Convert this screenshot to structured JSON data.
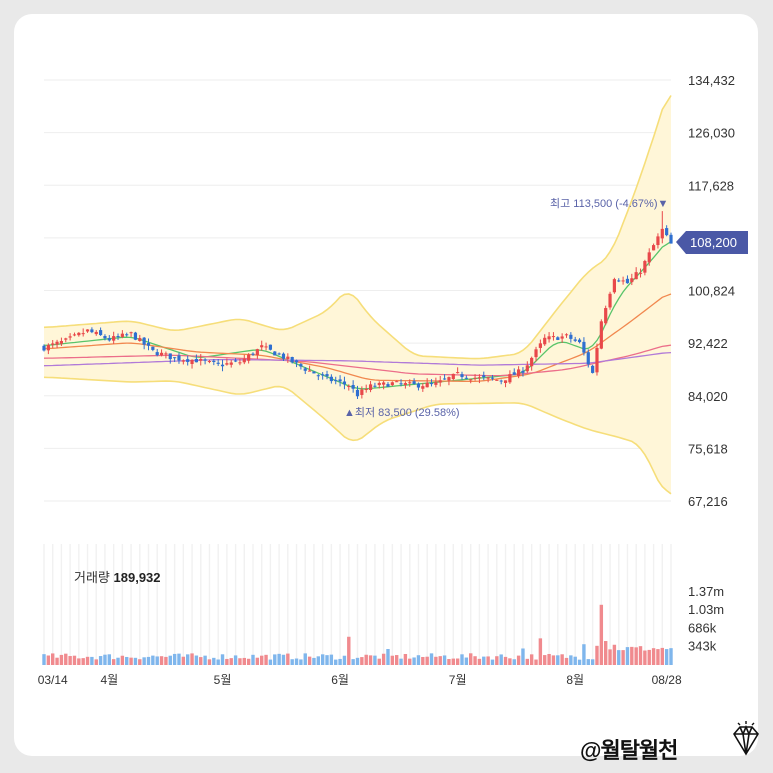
{
  "watermark": "@월탈월천",
  "volume_label": "거래량",
  "volume_value": "189,932",
  "current_price": "108,200",
  "high_label": "최고 113,500 (-4.67%)▼",
  "low_label": "▲최저 83,500 (29.58%)",
  "icons": [
    "diamond-icon"
  ],
  "colors": {
    "up": "#e8484a",
    "down": "#2f6fd0",
    "band_fill": "#fff6d8",
    "band_line": "#f6de7a",
    "ma5": "#58c46a",
    "ma20": "#f1884f",
    "ma60": "#ec6e8a",
    "ma120": "#b17ad8",
    "price_tag": "#4a58a6",
    "vol_up": "#f08a8e",
    "vol_down": "#7fb6ec"
  },
  "chart_data": {
    "type": "candlestick",
    "y_ticks": [
      "134,432",
      "126,030",
      "117,628",
      "108,200",
      "100,824",
      "92,422",
      "84,020",
      "75,618",
      "67,216"
    ],
    "ylim": [
      67216,
      134432
    ],
    "x_ticks": [
      "03/14",
      "4월",
      "5월",
      "6월",
      "7월",
      "8월",
      "08/28"
    ],
    "volume_ticks": [
      "1.37m",
      "1.03m",
      "686k",
      "343k"
    ],
    "high": 113500,
    "low": 83500,
    "current": 108200,
    "close_path": [
      {
        "i": 0,
        "v": 91700
      },
      {
        "i": 5,
        "v": 92800
      },
      {
        "i": 10,
        "v": 94400
      },
      {
        "i": 15,
        "v": 93000
      },
      {
        "i": 20,
        "v": 93900
      },
      {
        "i": 25,
        "v": 91100
      },
      {
        "i": 30,
        "v": 90000
      },
      {
        "i": 35,
        "v": 89700
      },
      {
        "i": 40,
        "v": 88900
      },
      {
        "i": 45,
        "v": 89400
      },
      {
        "i": 50,
        "v": 91800
      },
      {
        "i": 55,
        "v": 90200
      },
      {
        "i": 60,
        "v": 88300
      },
      {
        "i": 65,
        "v": 86700
      },
      {
        "i": 70,
        "v": 85700
      },
      {
        "i": 72,
        "v": 84200
      },
      {
        "i": 75,
        "v": 85500
      },
      {
        "i": 80,
        "v": 86000
      },
      {
        "i": 85,
        "v": 85700
      },
      {
        "i": 90,
        "v": 85900
      },
      {
        "i": 95,
        "v": 87400
      },
      {
        "i": 100,
        "v": 86800
      },
      {
        "i": 105,
        "v": 86500
      },
      {
        "i": 110,
        "v": 88100
      },
      {
        "i": 115,
        "v": 93100
      },
      {
        "i": 120,
        "v": 93500
      },
      {
        "i": 123,
        "v": 92400
      },
      {
        "i": 126,
        "v": 87600
      },
      {
        "i": 128,
        "v": 96000
      },
      {
        "i": 131,
        "v": 103000
      },
      {
        "i": 134,
        "v": 102000
      },
      {
        "i": 137,
        "v": 104000
      },
      {
        "i": 140,
        "v": 108000
      },
      {
        "i": 142,
        "v": 110500
      },
      {
        "i": 144,
        "v": 108200
      }
    ],
    "bands": {
      "upper": [
        {
          "i": 0,
          "v": 94900
        },
        {
          "i": 20,
          "v": 96000
        },
        {
          "i": 30,
          "v": 94300
        },
        {
          "i": 45,
          "v": 96400
        },
        {
          "i": 55,
          "v": 94300
        },
        {
          "i": 65,
          "v": 97500
        },
        {
          "i": 70,
          "v": 101300
        },
        {
          "i": 75,
          "v": 96500
        },
        {
          "i": 85,
          "v": 90400
        },
        {
          "i": 100,
          "v": 89900
        },
        {
          "i": 110,
          "v": 90800
        },
        {
          "i": 118,
          "v": 98000
        },
        {
          "i": 125,
          "v": 104000
        },
        {
          "i": 130,
          "v": 106200
        },
        {
          "i": 136,
          "v": 117000
        },
        {
          "i": 142,
          "v": 129500
        },
        {
          "i": 144,
          "v": 134400
        }
      ],
      "lower": [
        {
          "i": 0,
          "v": 87000
        },
        {
          "i": 20,
          "v": 86200
        },
        {
          "i": 30,
          "v": 86400
        },
        {
          "i": 45,
          "v": 84100
        },
        {
          "i": 55,
          "v": 85800
        },
        {
          "i": 65,
          "v": 80000
        },
        {
          "i": 71,
          "v": 76200
        },
        {
          "i": 78,
          "v": 80000
        },
        {
          "i": 90,
          "v": 82700
        },
        {
          "i": 110,
          "v": 82900
        },
        {
          "i": 118,
          "v": 80500
        },
        {
          "i": 125,
          "v": 78600
        },
        {
          "i": 132,
          "v": 77400
        },
        {
          "i": 137,
          "v": 76300
        },
        {
          "i": 141,
          "v": 70500
        },
        {
          "i": 143,
          "v": 67700
        },
        {
          "i": 144,
          "v": 68300
        }
      ]
    },
    "moving_averages": [
      {
        "name": "ma5",
        "points": [
          {
            "i": 0,
            "v": 92000
          },
          {
            "i": 20,
            "v": 93500
          },
          {
            "i": 35,
            "v": 90000
          },
          {
            "i": 50,
            "v": 91500
          },
          {
            "i": 60,
            "v": 88500
          },
          {
            "i": 72,
            "v": 85000
          },
          {
            "i": 95,
            "v": 86500
          },
          {
            "i": 110,
            "v": 87500
          },
          {
            "i": 118,
            "v": 93000
          },
          {
            "i": 126,
            "v": 91000
          },
          {
            "i": 132,
            "v": 100000
          },
          {
            "i": 140,
            "v": 106000
          },
          {
            "i": 144,
            "v": 109500
          }
        ]
      },
      {
        "name": "ma20",
        "points": [
          {
            "i": 0,
            "v": 91500
          },
          {
            "i": 20,
            "v": 92500
          },
          {
            "i": 35,
            "v": 91000
          },
          {
            "i": 50,
            "v": 90500
          },
          {
            "i": 65,
            "v": 88500
          },
          {
            "i": 75,
            "v": 86500
          },
          {
            "i": 100,
            "v": 86300
          },
          {
            "i": 112,
            "v": 87500
          },
          {
            "i": 125,
            "v": 91000
          },
          {
            "i": 135,
            "v": 96000
          },
          {
            "i": 144,
            "v": 100800
          }
        ]
      },
      {
        "name": "ma60",
        "points": [
          {
            "i": 0,
            "v": 90000
          },
          {
            "i": 30,
            "v": 90500
          },
          {
            "i": 60,
            "v": 89500
          },
          {
            "i": 85,
            "v": 87500
          },
          {
            "i": 105,
            "v": 87200
          },
          {
            "i": 120,
            "v": 88200
          },
          {
            "i": 135,
            "v": 90500
          },
          {
            "i": 144,
            "v": 92300
          }
        ]
      },
      {
        "name": "ma120",
        "points": [
          {
            "i": 0,
            "v": 88800
          },
          {
            "i": 40,
            "v": 89800
          },
          {
            "i": 70,
            "v": 89600
          },
          {
            "i": 100,
            "v": 88900
          },
          {
            "i": 125,
            "v": 89200
          },
          {
            "i": 144,
            "v": 91000
          }
        ]
      }
    ]
  }
}
